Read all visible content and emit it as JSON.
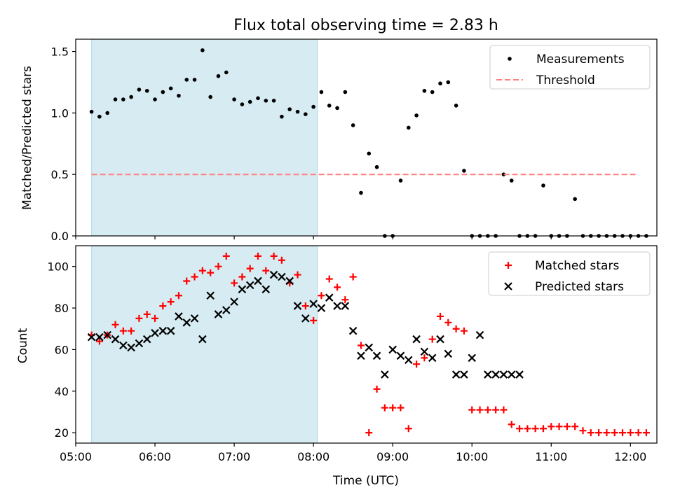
{
  "chart_data": [
    {
      "type": "scatter",
      "title": "Flux total observing time = 2.83 h",
      "xlabel": "",
      "ylabel": "Matched/Predicted stars",
      "xlim": [
        "05:00",
        "12:20"
      ],
      "ylim": [
        0,
        1.6
      ],
      "yticks": [
        "0.0",
        "0.5",
        "1.0",
        "1.5"
      ],
      "shaded_interval": [
        "05:12",
        "08:03"
      ],
      "shade_color": "#add8e6",
      "legend_position": "top-right",
      "series": [
        {
          "name": "Measurements",
          "kind": "points",
          "color": "#000000",
          "x": [
            "05:12",
            "05:18",
            "05:24",
            "05:30",
            "05:36",
            "05:42",
            "05:48",
            "05:54",
            "06:00",
            "06:06",
            "06:12",
            "06:18",
            "06:24",
            "06:30",
            "06:36",
            "06:42",
            "06:48",
            "06:54",
            "07:00",
            "07:06",
            "07:12",
            "07:18",
            "07:24",
            "07:30",
            "07:36",
            "07:42",
            "07:48",
            "07:54",
            "08:00",
            "08:06",
            "08:12",
            "08:18",
            "08:24",
            "08:30",
            "08:36",
            "08:42",
            "08:48",
            "08:54",
            "09:00",
            "09:06",
            "09:12",
            "09:18",
            "09:24",
            "09:30",
            "09:36",
            "09:42",
            "09:48",
            "09:54",
            "10:00",
            "10:06",
            "10:12",
            "10:18",
            "10:24",
            "10:30",
            "10:36",
            "10:42",
            "10:48",
            "10:54",
            "11:00",
            "11:06",
            "11:12",
            "11:18",
            "11:24",
            "11:30",
            "11:36",
            "11:42",
            "11:48",
            "11:54",
            "12:00",
            "12:06",
            "12:12"
          ],
          "y": [
            1.01,
            0.97,
            1.0,
            1.11,
            1.11,
            1.13,
            1.19,
            1.18,
            1.11,
            1.17,
            1.2,
            1.14,
            1.27,
            1.27,
            1.51,
            1.13,
            1.3,
            1.33,
            1.11,
            1.07,
            1.09,
            1.12,
            1.1,
            1.1,
            0.97,
            1.03,
            1.01,
            0.99,
            1.05,
            1.17,
            1.06,
            1.04,
            1.17,
            0.9,
            0.35,
            0.67,
            0.56,
            0.0,
            0.0,
            0.45,
            0.88,
            0.98,
            1.18,
            1.17,
            1.24,
            1.25,
            1.06,
            0.53,
            0.0,
            0.0,
            0.0,
            0.0,
            0.5,
            0.45,
            0.0,
            0.0,
            0.0,
            0.41,
            0.0,
            0.0,
            0.0,
            0.3,
            0.0,
            0.0,
            0.0,
            0.0,
            0.0,
            0.0,
            0.0,
            0.0,
            0.0
          ]
        },
        {
          "name": "Threshold",
          "kind": "dashed-line",
          "color": "#ff7f7f",
          "x": [
            "05:12",
            "12:05"
          ],
          "y": [
            0.5,
            0.5
          ]
        }
      ]
    },
    {
      "type": "scatter",
      "title": "",
      "xlabel": "Time (UTC)",
      "ylabel": "Count",
      "xlim": [
        "05:00",
        "12:20"
      ],
      "ylim": [
        15,
        110
      ],
      "xticks": [
        "05:00",
        "06:00",
        "07:00",
        "08:00",
        "09:00",
        "10:00",
        "11:00",
        "12:00"
      ],
      "yticks": [
        "20",
        "40",
        "60",
        "80",
        "100"
      ],
      "shaded_interval": [
        "05:12",
        "08:03"
      ],
      "shade_color": "#add8e6",
      "legend_position": "top-right",
      "series": [
        {
          "name": "Matched stars",
          "kind": "plus",
          "color": "#ff0000",
          "x": [
            "05:12",
            "05:18",
            "05:24",
            "05:30",
            "05:36",
            "05:42",
            "05:48",
            "05:54",
            "06:00",
            "06:06",
            "06:12",
            "06:18",
            "06:24",
            "06:30",
            "06:36",
            "06:42",
            "06:48",
            "06:54",
            "07:00",
            "07:06",
            "07:12",
            "07:18",
            "07:24",
            "07:30",
            "07:36",
            "07:42",
            "07:48",
            "07:54",
            "08:00",
            "08:06",
            "08:12",
            "08:18",
            "08:24",
            "08:30",
            "08:36",
            "08:42",
            "08:48",
            "08:54",
            "09:00",
            "09:06",
            "09:12",
            "09:18",
            "09:24",
            "09:30",
            "09:36",
            "09:42",
            "09:48",
            "09:54",
            "10:00",
            "10:06",
            "10:12",
            "10:18",
            "10:24",
            "10:30",
            "10:36",
            "10:42",
            "10:48",
            "10:54",
            "11:00",
            "11:06",
            "11:12",
            "11:18",
            "11:24",
            "11:30",
            "11:36",
            "11:42",
            "11:48",
            "11:54",
            "12:00",
            "12:06",
            "12:12"
          ],
          "y": [
            67,
            64,
            67,
            72,
            69,
            69,
            75,
            77,
            75,
            81,
            83,
            86,
            93,
            95,
            98,
            97,
            100,
            105,
            92,
            95,
            99,
            105,
            98,
            105,
            103,
            92,
            96,
            81,
            74,
            86,
            94,
            90,
            84,
            95,
            62,
            20,
            41,
            32,
            32,
            32,
            22,
            53,
            56,
            65,
            76,
            73,
            70,
            69,
            31,
            31,
            31,
            31,
            31,
            24,
            22,
            22,
            22,
            22,
            23,
            23,
            23,
            23,
            21,
            20,
            20,
            20,
            20,
            20,
            20,
            20,
            20
          ]
        },
        {
          "name": "Predicted stars",
          "kind": "cross",
          "color": "#000000",
          "x": [
            "05:12",
            "05:18",
            "05:24",
            "05:30",
            "05:36",
            "05:42",
            "05:48",
            "05:54",
            "06:00",
            "06:06",
            "06:12",
            "06:18",
            "06:24",
            "06:30",
            "06:36",
            "06:42",
            "06:48",
            "06:54",
            "07:00",
            "07:06",
            "07:12",
            "07:18",
            "07:24",
            "07:30",
            "07:36",
            "07:42",
            "07:48",
            "07:54",
            "08:00",
            "08:06",
            "08:12",
            "08:18",
            "08:24",
            "08:30",
            "08:36",
            "08:42",
            "08:48",
            "08:54",
            "09:00",
            "09:06",
            "09:12",
            "09:18",
            "09:24",
            "09:30",
            "09:36",
            "09:42",
            "09:48",
            "09:54",
            "10:00",
            "10:06",
            "10:12",
            "10:18",
            "10:24",
            "10:30",
            "10:36"
          ],
          "y": [
            66,
            66,
            67,
            65,
            62,
            61,
            63,
            65,
            68,
            69,
            69,
            76,
            73,
            75,
            65,
            86,
            77,
            79,
            83,
            89,
            91,
            93,
            89,
            96,
            95,
            93,
            81,
            75,
            82,
            80,
            85,
            81,
            81,
            69,
            57,
            61,
            57,
            48,
            60,
            57,
            55,
            65,
            59,
            56,
            65,
            58,
            48,
            48,
            56,
            67,
            48,
            48,
            48,
            48,
            48
          ]
        }
      ]
    }
  ]
}
